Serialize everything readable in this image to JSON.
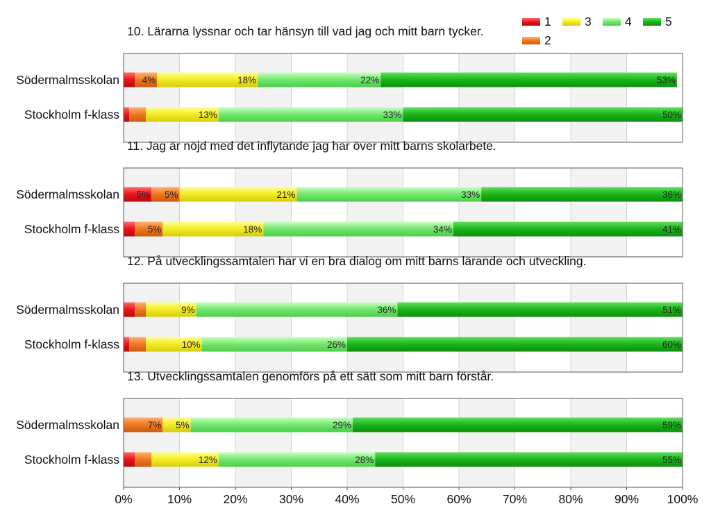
{
  "chart_data": {
    "type": "bar",
    "orientation": "horizontal",
    "stacked": true,
    "xlim": [
      0,
      100
    ],
    "x_ticks": [
      "0%",
      "10%",
      "20%",
      "30%",
      "40%",
      "50%",
      "60%",
      "70%",
      "80%",
      "90%",
      "100%"
    ],
    "categories": [
      "Södermalmsskolan",
      "Stockholm f-klass"
    ],
    "legend": {
      "placement": "top-right",
      "items": [
        {
          "name": "1",
          "color": "#e8141c"
        },
        {
          "name": "2",
          "color": "#f0781e"
        },
        {
          "name": "3",
          "color": "#f2ea20"
        },
        {
          "name": "4",
          "color": "#72e66e"
        },
        {
          "name": "5",
          "color": "#19b419"
        }
      ]
    },
    "panels": [
      {
        "title": "10. Lärarna lyssnar och tar hänsyn till vad jag och mitt barn tycker.",
        "rows": [
          {
            "category": "Södermalmsskolan",
            "values": [
              2,
              4,
              18,
              22,
              53
            ],
            "labels": [
              "",
              "4%",
              "18%",
              "22%",
              "53%"
            ]
          },
          {
            "category": "Stockholm f-klass",
            "values": [
              1,
              3,
              13,
              33,
              50
            ],
            "labels": [
              "",
              "",
              "13%",
              "33%",
              "50%"
            ]
          }
        ]
      },
      {
        "title": "11. Jag är nöjd med det inflytande jag har över mitt barns skolarbete.",
        "rows": [
          {
            "category": "Södermalmsskolan",
            "values": [
              5,
              5,
              21,
              33,
              36
            ],
            "labels": [
              "5%",
              "5%",
              "21%",
              "33%",
              "36%"
            ]
          },
          {
            "category": "Stockholm f-klass",
            "values": [
              2,
              5,
              18,
              34,
              41
            ],
            "labels": [
              "",
              "5%",
              "18%",
              "34%",
              "41%"
            ]
          }
        ]
      },
      {
        "title": "12. På utvecklingssamtalen har vi en bra dialog om mitt barns lärande och utveckling.",
        "rows": [
          {
            "category": "Södermalmsskolan",
            "values": [
              2,
              2,
              9,
              36,
              51
            ],
            "labels": [
              "",
              "",
              "9%",
              "36%",
              "51%"
            ]
          },
          {
            "category": "Stockholm f-klass",
            "values": [
              1,
              3,
              10,
              26,
              60
            ],
            "labels": [
              "",
              "",
              "10%",
              "26%",
              "60%"
            ]
          }
        ]
      },
      {
        "title": "13. Utvecklingssamtalen genomförs på ett sätt som mitt barn förstår.",
        "rows": [
          {
            "category": "Södermalmsskolan",
            "values": [
              0,
              7,
              5,
              29,
              59
            ],
            "labels": [
              "",
              "7%",
              "5%",
              "29%",
              "59%"
            ]
          },
          {
            "category": "Stockholm f-klass",
            "values": [
              2,
              3,
              12,
              28,
              55
            ],
            "labels": [
              "",
              "",
              "12%",
              "28%",
              "55%"
            ]
          }
        ]
      }
    ]
  }
}
